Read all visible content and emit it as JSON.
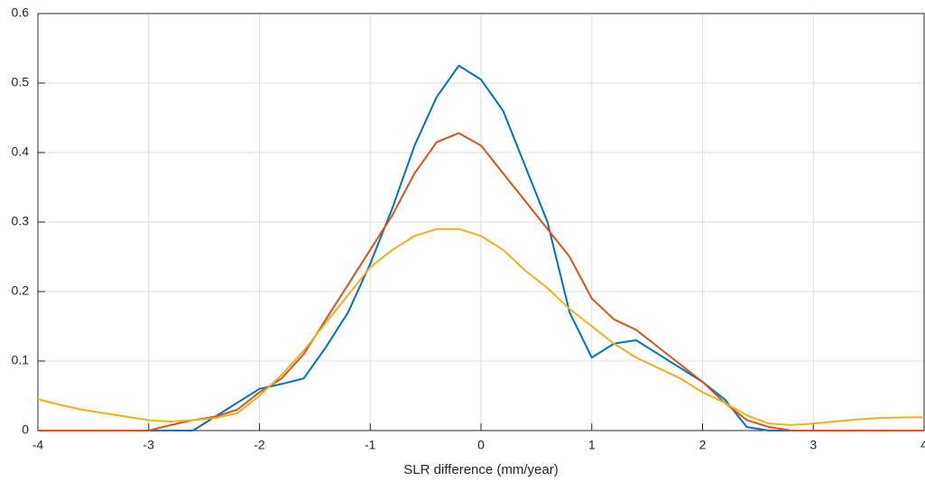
{
  "chart_data": {
    "type": "line",
    "xlabel": "SLR difference (mm/year)",
    "x": [
      -4,
      -3.8,
      -3.6,
      -3.4,
      -3.2,
      -3,
      -2.8,
      -2.6,
      -2.4,
      -2.2,
      -2,
      -1.8,
      -1.6,
      -1.4,
      -1.2,
      -1,
      -0.8,
      -0.6,
      -0.4,
      -0.2,
      0,
      0.2,
      0.4,
      0.6,
      0.8,
      1,
      1.2,
      1.4,
      1.6,
      1.8,
      2,
      2.2,
      2.4,
      2.6,
      2.8,
      3,
      3.2,
      3.4,
      3.6,
      3.8,
      4
    ],
    "series": [
      {
        "color": "#0072BD",
        "values": [
          0,
          0,
          0,
          0,
          0,
          0,
          0,
          0,
          0.02,
          0.04,
          0.06,
          0.067,
          0.075,
          0.12,
          0.17,
          0.24,
          0.32,
          0.41,
          0.48,
          0.525,
          0.505,
          0.46,
          0.38,
          0.3,
          0.17,
          0.105,
          0.125,
          0.13,
          0.11,
          0.09,
          0.07,
          0.045,
          0.005,
          0,
          0,
          0,
          0,
          0,
          0,
          0,
          0
        ]
      },
      {
        "color": "#D95319",
        "values": [
          0,
          0,
          0,
          0,
          0,
          0,
          0.008,
          0.015,
          0.02,
          0.03,
          0.055,
          0.075,
          0.11,
          0.16,
          0.21,
          0.26,
          0.31,
          0.37,
          0.415,
          0.428,
          0.41,
          0.37,
          0.33,
          0.29,
          0.25,
          0.19,
          0.16,
          0.145,
          0.12,
          0.095,
          0.07,
          0.04,
          0.015,
          0.005,
          0,
          0,
          0,
          0,
          0,
          0,
          0
        ]
      },
      {
        "color": "#EDB120",
        "values": [
          0.045,
          0.037,
          0.03,
          0.025,
          0.02,
          0.015,
          0.013,
          0.015,
          0.018,
          0.025,
          0.05,
          0.08,
          0.115,
          0.155,
          0.195,
          0.235,
          0.26,
          0.28,
          0.29,
          0.29,
          0.28,
          0.26,
          0.23,
          0.205,
          0.175,
          0.15,
          0.125,
          0.105,
          0.09,
          0.075,
          0.055,
          0.04,
          0.022,
          0.01,
          0.008,
          0.01,
          0.013,
          0.016,
          0.018,
          0.019,
          0.019
        ]
      }
    ],
    "xlim": [
      -4,
      4
    ],
    "xticks": [
      -4,
      -3,
      -2,
      -1,
      0,
      1,
      2,
      3,
      4
    ],
    "ylim": [
      0,
      0.6
    ],
    "yticks": [
      0,
      0.1,
      0.2,
      0.3,
      0.4,
      0.5,
      0.6
    ],
    "grid": true
  }
}
